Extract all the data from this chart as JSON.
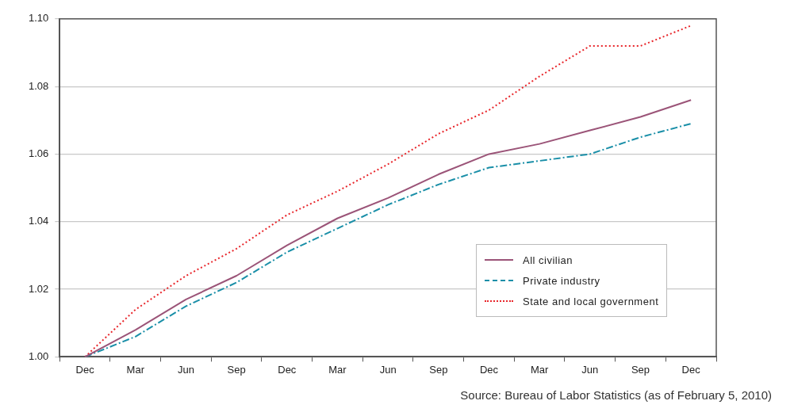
{
  "chart_data": {
    "type": "line",
    "categories": [
      "Dec",
      "Mar",
      "Jun",
      "Sep",
      "Dec",
      "Mar",
      "Jun",
      "Sep",
      "Dec",
      "Mar",
      "Jun",
      "Sep",
      "Dec"
    ],
    "series": [
      {
        "name": "All civilian",
        "color": "#9b5478",
        "line_style": "solid",
        "values": [
          1.0,
          1.008,
          1.017,
          1.024,
          1.033,
          1.041,
          1.047,
          1.054,
          1.06,
          1.063,
          1.067,
          1.071,
          1.076
        ]
      },
      {
        "name": "Private industry",
        "color": "#1a8fa8",
        "line_style": "dashed",
        "values": [
          1.0,
          1.006,
          1.015,
          1.022,
          1.031,
          1.038,
          1.045,
          1.051,
          1.056,
          1.058,
          1.06,
          1.065,
          1.069
        ]
      },
      {
        "name": "State and local government",
        "color": "#e8262b",
        "line_style": "dotted",
        "values": [
          1.0,
          1.014,
          1.024,
          1.032,
          1.042,
          1.049,
          1.057,
          1.066,
          1.073,
          1.083,
          1.092,
          1.092,
          1.098
        ]
      }
    ],
    "ylim": [
      1.0,
      1.1
    ],
    "yticks": [
      {
        "value": 1.0,
        "label": "1.00"
      },
      1.02,
      1.04,
      1.06,
      1.08,
      {
        "value": 1.1,
        "label": "1.10"
      }
    ],
    "grid": "y",
    "legend": "bottom right",
    "marker": "none",
    "annotations": [
      "Source: Bureau of Labor Statistics (as of February 5, 2010)"
    ]
  }
}
